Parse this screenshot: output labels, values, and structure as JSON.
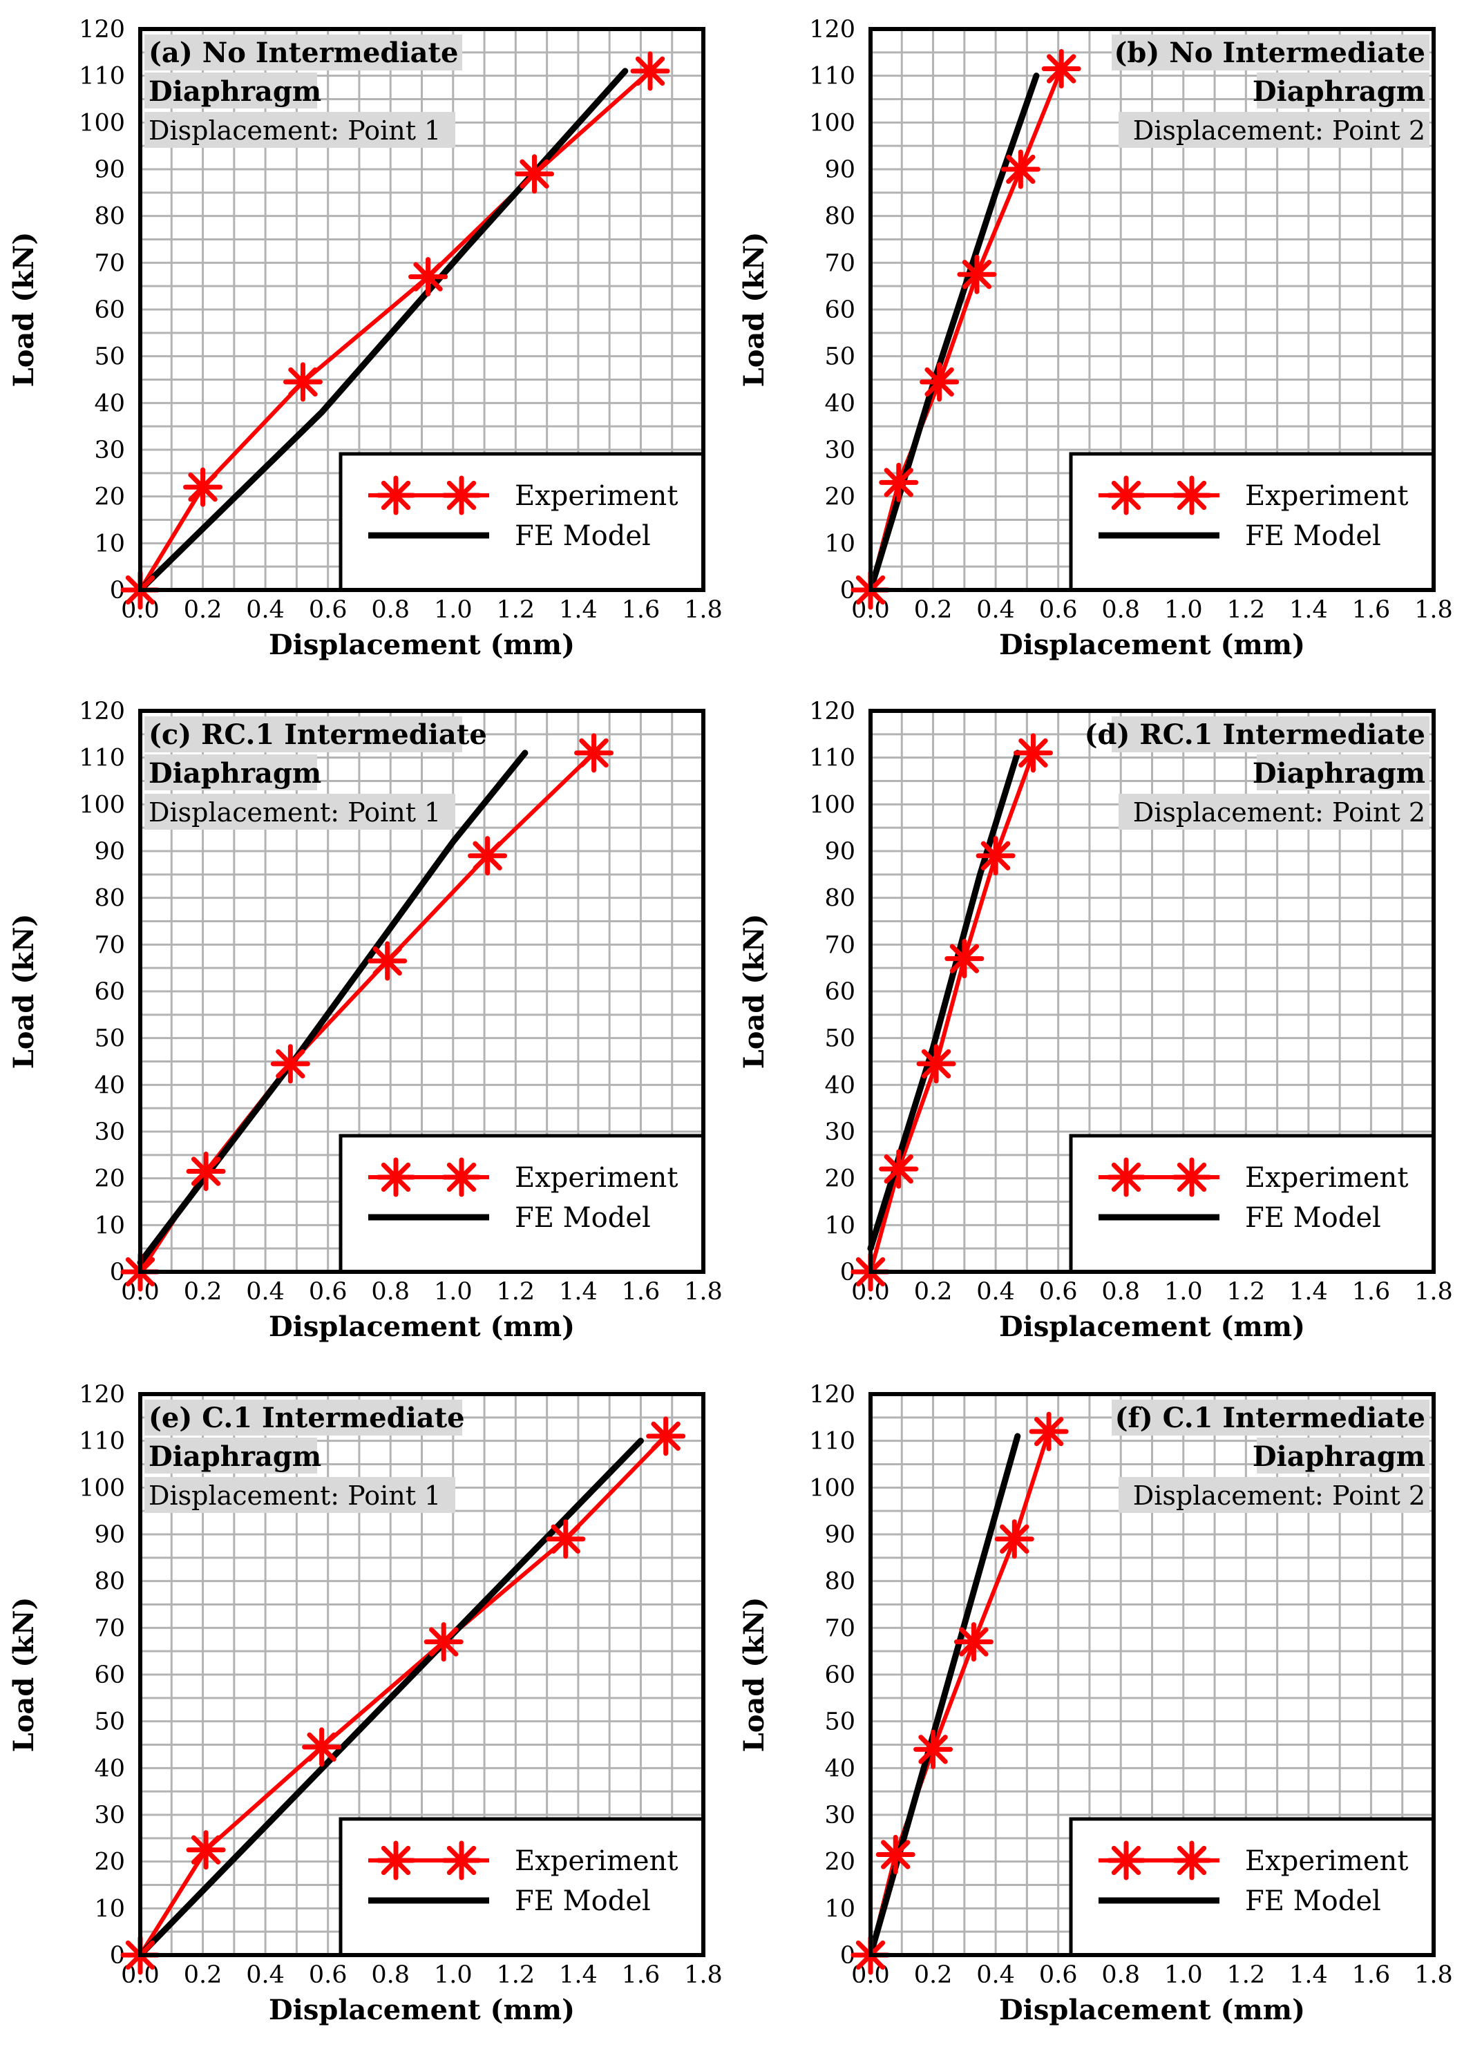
{
  "colors": {
    "experiment": "#ff0000",
    "fe_model": "#000000",
    "grid": "#b3b3b3",
    "label_bg": "#d9d9d9"
  },
  "chart_data": [
    {
      "type": "line",
      "title": "(a) No Intermediate",
      "title_line2": "Diaphragm",
      "subtitle": "Displacement: Point 1",
      "title_align": "left",
      "xlabel": "Displacement (mm)",
      "ylabel": "Load (kN)",
      "xlim": [
        0,
        1.8
      ],
      "ylim": [
        0,
        120
      ],
      "xticks": [
        "0.0",
        "0.2",
        "0.4",
        "0.6",
        "0.8",
        "1.0",
        "1.2",
        "1.4",
        "1.6",
        "1.8"
      ],
      "yticks": [
        "0",
        "10",
        "20",
        "30",
        "40",
        "50",
        "60",
        "70",
        "80",
        "90",
        "100",
        "110",
        "120"
      ],
      "legend": [
        "Experiment",
        "FE Model"
      ],
      "series": [
        {
          "name": "Experiment",
          "marker": "asterisk",
          "x": [
            0.0,
            0.2,
            0.52,
            0.92,
            1.26,
            1.63
          ],
          "y": [
            0,
            22,
            44.5,
            67,
            89,
            111
          ]
        },
        {
          "name": "FE Model",
          "marker": "none",
          "x": [
            0.0,
            0.58,
            1.04,
            1.55
          ],
          "y": [
            0,
            38,
            73,
            111
          ]
        }
      ]
    },
    {
      "type": "line",
      "title": "(b) No Intermediate",
      "title_line2": "Diaphragm",
      "subtitle": "Displacement: Point 2",
      "title_align": "right",
      "xlabel": "Displacement (mm)",
      "ylabel": "Load (kN)",
      "xlim": [
        0,
        1.8
      ],
      "ylim": [
        0,
        120
      ],
      "xticks": [
        "0.0",
        "0.2",
        "0.4",
        "0.6",
        "0.8",
        "1.0",
        "1.2",
        "1.4",
        "1.6",
        "1.8"
      ],
      "yticks": [
        "0",
        "10",
        "20",
        "30",
        "40",
        "50",
        "60",
        "70",
        "80",
        "90",
        "100",
        "110",
        "120"
      ],
      "legend": [
        "Experiment",
        "FE Model"
      ],
      "series": [
        {
          "name": "Experiment",
          "marker": "asterisk",
          "x": [
            0.0,
            0.09,
            0.22,
            0.34,
            0.48,
            0.61
          ],
          "y": [
            0,
            23,
            44.5,
            67.5,
            90,
            111.5
          ]
        },
        {
          "name": "FE Model",
          "marker": "none",
          "x": [
            0.0,
            0.2,
            0.4,
            0.53
          ],
          "y": [
            0,
            44,
            85,
            110
          ]
        }
      ]
    },
    {
      "type": "line",
      "title": "(c) RC.1 Intermediate",
      "title_line2": "Diaphragm",
      "subtitle": "Displacement: Point 1",
      "title_align": "left",
      "xlabel": "Displacement (mm)",
      "ylabel": "Load (kN)",
      "xlim": [
        0,
        1.8
      ],
      "ylim": [
        0,
        120
      ],
      "xticks": [
        "0.0",
        "0.2",
        "0.4",
        "0.6",
        "0.8",
        "1.0",
        "1.2",
        "1.4",
        "1.6",
        "1.8"
      ],
      "yticks": [
        "0",
        "10",
        "20",
        "30",
        "40",
        "50",
        "60",
        "70",
        "80",
        "90",
        "100",
        "110",
        "120"
      ],
      "legend": [
        "Experiment",
        "FE Model"
      ],
      "series": [
        {
          "name": "Experiment",
          "marker": "asterisk",
          "x": [
            0.0,
            0.21,
            0.48,
            0.79,
            1.11,
            1.45
          ],
          "y": [
            0,
            21.5,
            44.5,
            66.5,
            89,
            111
          ]
        },
        {
          "name": "FE Model",
          "marker": "none",
          "x": [
            0.0,
            0.5,
            1.0,
            1.23
          ],
          "y": [
            2,
            46,
            92,
            111
          ]
        }
      ]
    },
    {
      "type": "line",
      "title": "(d) RC.1 Intermediate",
      "title_line2": "Diaphragm",
      "subtitle": "Displacement: Point 2",
      "title_align": "right",
      "xlabel": "Displacement (mm)",
      "ylabel": "Load (kN)",
      "xlim": [
        0,
        1.8
      ],
      "ylim": [
        0,
        120
      ],
      "xticks": [
        "0.0",
        "0.2",
        "0.4",
        "0.6",
        "0.8",
        "1.0",
        "1.2",
        "1.4",
        "1.6",
        "1.8"
      ],
      "yticks": [
        "0",
        "10",
        "20",
        "30",
        "40",
        "50",
        "60",
        "70",
        "80",
        "90",
        "100",
        "110",
        "120"
      ],
      "legend": [
        "Experiment",
        "FE Model"
      ],
      "series": [
        {
          "name": "Experiment",
          "marker": "asterisk",
          "x": [
            0.0,
            0.09,
            0.21,
            0.3,
            0.4,
            0.52
          ],
          "y": [
            0,
            22,
            44.5,
            67,
            89,
            111
          ]
        },
        {
          "name": "FE Model",
          "marker": "none",
          "x": [
            0.0,
            0.2,
            0.35,
            0.47
          ],
          "y": [
            5,
            48,
            85,
            111
          ]
        }
      ]
    },
    {
      "type": "line",
      "title": "(e) C.1 Intermediate",
      "title_line2": "Diaphragm",
      "subtitle": "Displacement: Point 1",
      "title_align": "left",
      "xlabel": "Displacement (mm)",
      "ylabel": "Load (kN)",
      "xlim": [
        0,
        1.8
      ],
      "ylim": [
        0,
        120
      ],
      "xticks": [
        "0.0",
        "0.2",
        "0.4",
        "0.6",
        "0.8",
        "1.0",
        "1.2",
        "1.4",
        "1.6",
        "1.8"
      ],
      "yticks": [
        "0",
        "10",
        "20",
        "30",
        "40",
        "50",
        "60",
        "70",
        "80",
        "90",
        "100",
        "110",
        "120"
      ],
      "legend": [
        "Experiment",
        "FE Model"
      ],
      "series": [
        {
          "name": "Experiment",
          "marker": "asterisk",
          "x": [
            0.0,
            0.21,
            0.58,
            0.97,
            1.36,
            1.68
          ],
          "y": [
            0,
            22.5,
            44.5,
            67,
            89,
            111
          ]
        },
        {
          "name": "FE Model",
          "marker": "none",
          "x": [
            0.0,
            0.8,
            1.6
          ],
          "y": [
            0,
            55,
            110
          ]
        }
      ]
    },
    {
      "type": "line",
      "title": "(f) C.1 Intermediate",
      "title_line2": "Diaphragm",
      "subtitle": "Displacement: Point 2",
      "title_align": "right",
      "xlabel": "Displacement (mm)",
      "ylabel": "Load (kN)",
      "xlim": [
        0,
        1.8
      ],
      "ylim": [
        0,
        120
      ],
      "xticks": [
        "0.0",
        "0.2",
        "0.4",
        "0.6",
        "0.8",
        "1.0",
        "1.2",
        "1.4",
        "1.6",
        "1.8"
      ],
      "yticks": [
        "0",
        "10",
        "20",
        "30",
        "40",
        "50",
        "60",
        "70",
        "80",
        "90",
        "100",
        "110",
        "120"
      ],
      "legend": [
        "Experiment",
        "FE Model"
      ],
      "series": [
        {
          "name": "Experiment",
          "marker": "asterisk",
          "x": [
            0.0,
            0.08,
            0.2,
            0.33,
            0.46,
            0.57
          ],
          "y": [
            0,
            21.5,
            44,
            67,
            89,
            112
          ]
        },
        {
          "name": "FE Model",
          "marker": "none",
          "x": [
            0.0,
            0.2,
            0.47
          ],
          "y": [
            0,
            47,
            111
          ]
        }
      ]
    }
  ]
}
